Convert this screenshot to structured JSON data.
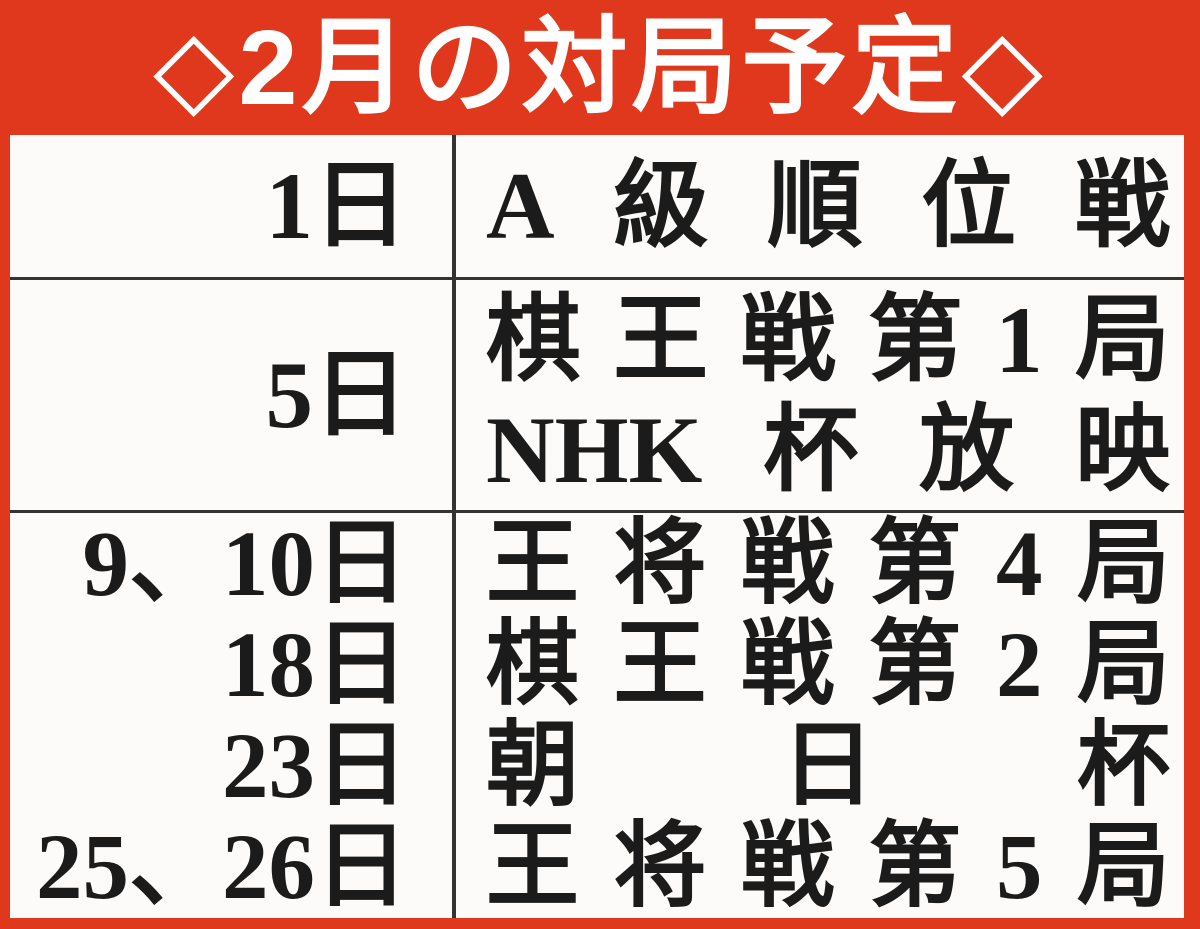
{
  "header": {
    "title": "◇2月の対局予定◇"
  },
  "colors": {
    "accent_red": "#e0381c",
    "header_text": "#ffffff",
    "cell_background": "#fcfbf9",
    "grid_line": "#333333",
    "text": "#1b1b1b"
  },
  "schedule": {
    "month_rows": [
      {
        "dates": [
          "1日"
        ],
        "events": [
          "A級順位戦"
        ]
      },
      {
        "dates": [
          "5日"
        ],
        "events": [
          "棋王戦第1局",
          "NHK杯放映"
        ]
      },
      {
        "dates": [
          "9、10日",
          "18日",
          "23日",
          "25、26日"
        ],
        "events": [
          "王将戦第4局",
          "棋王戦第2局",
          "朝日杯",
          "王将戦第5局"
        ]
      }
    ]
  }
}
